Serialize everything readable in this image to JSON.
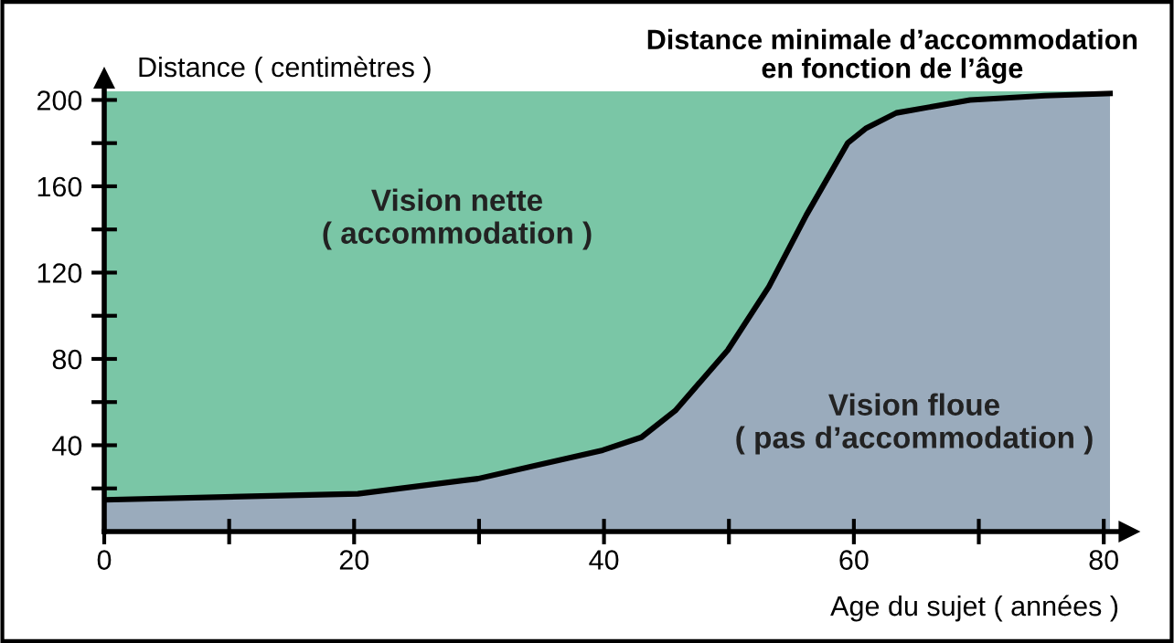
{
  "chart_data": {
    "type": "area",
    "title": "Distance minimale d’accommodation\nen fonction de l’âge",
    "xlabel": "Age du sujet ( années )",
    "ylabel": "Distance ( centimètres )",
    "x": [
      0,
      20.3,
      29.9,
      39.9,
      43,
      45.7,
      49.9,
      53.2,
      56.2,
      59.5,
      61,
      63.4,
      69.3,
      75.3,
      80.5
    ],
    "series": [
      {
        "color": "#9aabbc",
        "values": [
          14.7,
          17.5,
          24.5,
          37.7,
          43.7,
          56,
          84,
          113.5,
          146.7,
          180,
          187,
          194,
          200,
          202,
          203
        ]
      }
    ],
    "bands": [
      {
        "axis": "y",
        "from": 0,
        "to": 204,
        "color": "#7ac6a6"
      }
    ],
    "annotations": [
      "Vision nette\n( accommodation )",
      "Vision floue\n( pas d’accommodation )"
    ],
    "xlim": [
      0,
      82
    ],
    "ylim": [
      0,
      210
    ],
    "xticks": [
      0,
      {
        "value": 10,
        "label": null
      },
      20,
      {
        "value": 30,
        "label": null
      },
      40,
      {
        "value": 50,
        "label": null
      },
      60,
      {
        "value": 70,
        "label": null
      },
      80
    ],
    "yticks": [
      {
        "value": 20,
        "label": null
      },
      40,
      {
        "value": 60,
        "label": null
      },
      80,
      {
        "value": 100,
        "label": null
      },
      120,
      {
        "value": 140,
        "label": null
      },
      160,
      {
        "value": 180,
        "label": null
      },
      200
    ],
    "grid": false,
    "legend": false
  }
}
